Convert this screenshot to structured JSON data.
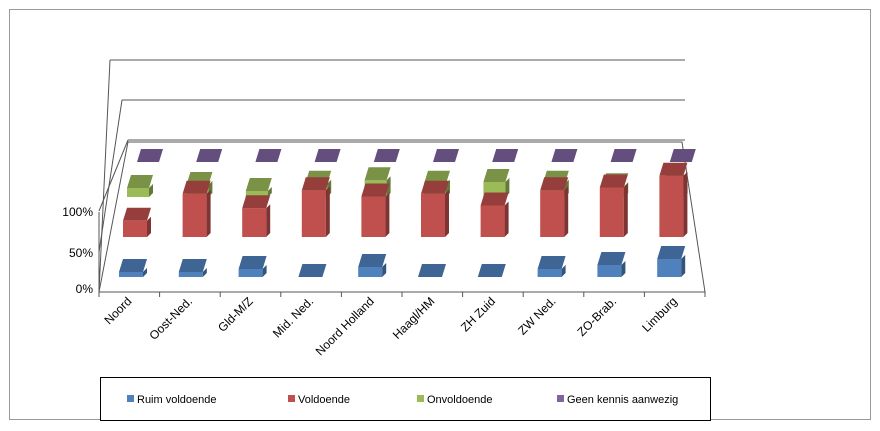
{
  "chart_data": {
    "type": "bar",
    "subtype": "3d-column",
    "title": "",
    "xlabel": "",
    "ylabel": "",
    "y_ticks": [
      "0%",
      "50%",
      "100%"
    ],
    "ylim": [
      0,
      100
    ],
    "grid": true,
    "legend_position": "bottom",
    "categories": [
      "Noord",
      "Oost-Ned.",
      "Gld-M/Z",
      "Mid. Ned.",
      "Noord Holland",
      "Haagl/HM",
      "ZH Zuid",
      "ZW Ned.",
      "ZO-Brab.",
      "Limburg"
    ],
    "series": [
      {
        "name": "Ruim voldoende",
        "color": "#4f81bd",
        "values": [
          5,
          5,
          8,
          0,
          10,
          0,
          0,
          8,
          12,
          18
        ]
      },
      {
        "name": "Voldoende",
        "color": "#c0504d",
        "values": [
          18,
          48,
          32,
          52,
          45,
          48,
          35,
          52,
          55,
          68
        ]
      },
      {
        "name": "Onvoldoende",
        "color": "#9bbb59",
        "values": [
          15,
          20,
          10,
          22,
          28,
          22,
          25,
          22,
          18,
          15
        ]
      },
      {
        "name": "Geen kennis aanwezig",
        "color": "#8064a2",
        "values": [
          0,
          0,
          0,
          0,
          0,
          0,
          0,
          0,
          0,
          0
        ]
      }
    ]
  }
}
